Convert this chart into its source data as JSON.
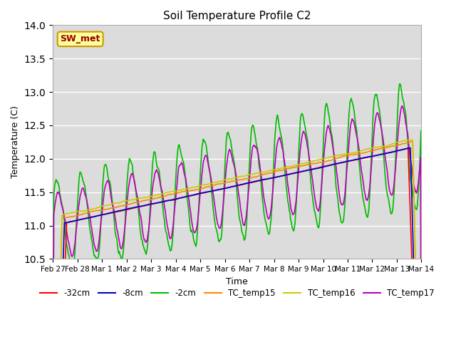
{
  "title": "Soil Temperature Profile C2",
  "xlabel": "Time",
  "ylabel": "Temperature (C)",
  "ylim": [
    10.5,
    14.0
  ],
  "yticks": [
    10.5,
    11.0,
    11.5,
    12.0,
    12.5,
    13.0,
    13.5,
    14.0
  ],
  "background_color": "#ffffff",
  "plot_bg_color": "#dcdcdc",
  "annotation_text": "SW_met",
  "annotation_bg": "#ffff99",
  "annotation_border": "#cc9900",
  "annotation_text_color": "#990000",
  "series_colors": {
    "-32cm": "#ff0000",
    "-8cm": "#0000cc",
    "-2cm": "#00bb00",
    "TC_temp15": "#ff8800",
    "TC_temp16": "#cccc00",
    "TC_temp17": "#bb00bb"
  },
  "lw": 1.2,
  "n_points": 800,
  "xtick_labels": [
    "Feb 27",
    "Feb 28",
    "Mar 1",
    "Mar 2",
    "Mar 3",
    "Mar 4",
    "Mar 5",
    "Mar 6",
    "Mar 7",
    "Mar 8",
    "Mar 9",
    "Mar 10",
    "Mar 11",
    "Mar 12",
    "Mar 13",
    "Mar 14"
  ]
}
